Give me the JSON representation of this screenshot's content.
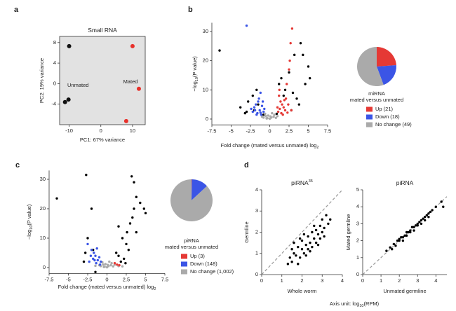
{
  "chart_data": [
    {
      "type": "scatter",
      "panel": "a",
      "title": "Small RNA",
      "xlabel": "PC1: 67% variance",
      "ylabel": "PC2: 19% variance",
      "xlim": [
        -13,
        14
      ],
      "ylim": [
        -8,
        9.2
      ],
      "xticks": [
        -10,
        0,
        10
      ],
      "yticks": [
        -4,
        0,
        4,
        8
      ],
      "background": "#e2e2e2",
      "series": [
        {
          "name": "Unmated",
          "color": "#111111",
          "x": [
            -10,
            -11.3,
            -10.2
          ],
          "values": [
            7.3,
            -3.6,
            -3.1
          ]
        },
        {
          "name": "Mated",
          "color": "#e8302a",
          "x": [
            10,
            12,
            8
          ],
          "values": [
            7.3,
            -1,
            -7.3
          ]
        }
      ]
    },
    {
      "type": "scatter",
      "panel": "b",
      "xlabel": "Fold change (mated versus unmated) log",
      "xlabel_sub": "2",
      "ylabel": "−log",
      "ylabel_sub": "10",
      "ylabel_end": "(P value)",
      "xlim": [
        -7.5,
        7.5
      ],
      "ylim": [
        -2,
        33
      ],
      "xticks": [
        -7.5,
        -5,
        -2.5,
        0,
        2.5,
        5,
        7.5
      ],
      "yticks": [
        0,
        10,
        20,
        30
      ],
      "series": [
        {
          "name": "Up (21)",
          "color": "#e53935",
          "x": [
            2.9,
            2.7,
            2.6,
            2.5,
            2.2,
            1.2,
            1.4,
            1.6,
            1.8,
            2,
            1.1,
            1.3,
            1.5,
            1.9,
            2.1,
            2.4,
            1,
            1.7,
            2.8,
            1.25,
            2.3
          ],
          "values": [
            31,
            26,
            20,
            17,
            12,
            8,
            6,
            5,
            4,
            3,
            2.5,
            3.5,
            2,
            6.5,
            7,
            5,
            4,
            1.5,
            3,
            10,
            2.2
          ]
        },
        {
          "name": "Down (18)",
          "color": "#3b55e6",
          "x": [
            -3,
            -1.2,
            -1.5,
            -1.8,
            -2,
            -1.3,
            -1,
            -0.8,
            -1.6,
            -2.2,
            -1.1,
            -0.7,
            -1.9,
            -1.4,
            -0.9,
            -1.7,
            -1.2,
            -2.4
          ],
          "values": [
            32,
            9,
            6,
            5,
            4,
            3,
            4.5,
            2.5,
            2,
            2.5,
            1.5,
            3.5,
            3,
            7,
            6,
            1.5,
            2.2,
            3.5
          ]
        },
        {
          "name": "No change (49)",
          "color": "#aaaaaa",
          "x": [
            -0.8,
            -0.5,
            -0.3,
            0,
            0.2,
            0.5,
            0.8,
            -0.6,
            0.6,
            -0.2,
            0.3,
            1,
            -1,
            0.1,
            -0.4
          ],
          "values": [
            0.5,
            1,
            0.3,
            0.1,
            0.5,
            0.8,
            0.4,
            1.8,
            1.5,
            1.2,
            2,
            1,
            0.8,
            0.9,
            0.2
          ]
        },
        {
          "color": "#000000",
          "x": [
            -6.5,
            -3.8,
            -3,
            -2.8,
            -2.2,
            -2,
            -1.7,
            -1.5,
            1.2,
            1.5,
            1.8,
            2,
            2.5,
            3,
            3.5,
            3.2,
            4,
            4.3,
            5,
            5.2,
            4.6,
            3.8,
            2.8,
            -3.2,
            -0.8,
            0.9
          ],
          "values": [
            23.5,
            4,
            2.5,
            6,
            8,
            3,
            10,
            5,
            12,
            14,
            8,
            10,
            16,
            9,
            7,
            22,
            26,
            22,
            18,
            14,
            12,
            5,
            3,
            2,
            1.5,
            1.8
          ]
        }
      ]
    },
    {
      "type": "pie",
      "title": "miRNA",
      "subtitle": "mated versus unmated",
      "values": [
        21,
        18,
        49
      ],
      "colors": [
        "#e53935",
        "#3b55e6",
        "#aaaaaa"
      ]
    },
    {
      "type": "scatter",
      "panel": "c",
      "xlabel": "Fold change (mated versus unmated) log",
      "xlabel_sub": "2",
      "ylabel": "−log",
      "ylabel_sub": "10",
      "ylabel_end": "(P value)",
      "xlim": [
        -7.5,
        7.5
      ],
      "ylim": [
        -2,
        33
      ],
      "xticks": [
        -7.5,
        -5,
        -2.5,
        0,
        2.5,
        5,
        7.5
      ],
      "yticks": [
        0,
        10,
        20,
        30
      ],
      "series": [
        {
          "name": "Up (3)",
          "color": "#e53935",
          "x": [
            1,
            1.3,
            1.6
          ],
          "values": [
            1.5,
            1,
            0.8
          ]
        },
        {
          "name": "Down (148)",
          "color": "#3b55e6",
          "x": [
            -2,
            -1.5,
            -1.8,
            -1.2,
            -2.3,
            -1,
            -0.8,
            -1.4,
            -1.7,
            -2.1,
            -0.9,
            -1.3,
            -2.5,
            -1.6
          ],
          "values": [
            6,
            4,
            3,
            2.5,
            2,
            3.5,
            2,
            1.5,
            5,
            4,
            1,
            6.5,
            8,
            2.5
          ]
        },
        {
          "name": "No change (1,002)",
          "color": "#aaaaaa",
          "x": [
            -0.8,
            -0.5,
            -0.3,
            0,
            0.2,
            0.5,
            0.8,
            -0.6,
            0.6,
            -0.2,
            0.3,
            1,
            -1,
            0.1,
            -0.4,
            1.5,
            -1.5,
            2
          ],
          "values": [
            0.5,
            1,
            0.3,
            0.1,
            0.5,
            0.8,
            0.4,
            1.8,
            1.5,
            1.2,
            2,
            1,
            0.8,
            0.9,
            0.2,
            0.5,
            0.6,
            0.4
          ]
        },
        {
          "color": "#000000",
          "x": [
            -6.5,
            -2.7,
            -2,
            -2.5,
            -2.8,
            -3,
            -1.8,
            1.5,
            2,
            2.5,
            3,
            3.3,
            3.5,
            3.8,
            3.5,
            3.2,
            4.3,
            4.8,
            5,
            2.8,
            2.2,
            1.5,
            -1.5,
            3.8,
            2.6,
            1.8,
            2.4,
            1.2
          ],
          "values": [
            23.5,
            31.5,
            20,
            10,
            5,
            2,
            6,
            14,
            10,
            8,
            15,
            17,
            20,
            24,
            29,
            31,
            22,
            20,
            18.5,
            6,
            3,
            4,
            -1.5,
            12,
            12,
            2,
            1.5,
            5
          ]
        }
      ]
    },
    {
      "type": "pie",
      "title": "piRNA",
      "subtitle": "mated versus unmated",
      "values": [
        3,
        148,
        1002
      ],
      "colors": [
        "#e53935",
        "#3b55e6",
        "#aaaaaa"
      ]
    },
    {
      "type": "scatter",
      "panel": "d",
      "title": "piRNA",
      "title_sup": "35",
      "xlabel": "Whole worm",
      "ylabel": "Germline",
      "ylabel_color": "#a35bd6",
      "xlim": [
        0,
        4
      ],
      "ylim": [
        0,
        4
      ],
      "xticks": [
        0,
        1,
        2,
        3,
        4
      ],
      "yticks": [
        0,
        1,
        2,
        3,
        4
      ],
      "diagonal": true,
      "series": [
        {
          "color": "#000000",
          "x": [
            1.3,
            1.4,
            1.5,
            1.6,
            1.7,
            1.8,
            1.9,
            2.0,
            2.0,
            2.1,
            2.2,
            2.3,
            2.3,
            2.4,
            2.5,
            2.5,
            2.6,
            2.7,
            2.7,
            2.8,
            2.9,
            3.0,
            3.0,
            3.1,
            3.2,
            3.3,
            1.6,
            1.9,
            2.2,
            2.6,
            1.5,
            2.8,
            3.4,
            2.4,
            1.8,
            2.1,
            3.1,
            2.9
          ],
          "values": [
            0.5,
            0.8,
            0.6,
            1.0,
            0.9,
            1.3,
            0.8,
            1.2,
            1.6,
            1.0,
            1.4,
            1.2,
            1.8,
            1.5,
            1.3,
            2.0,
            1.7,
            1.5,
            2.1,
            1.9,
            2.3,
            2.0,
            2.6,
            2.2,
            2.8,
            2.4,
            1.5,
            1.7,
            0.9,
            2.3,
            1.2,
            1.4,
            2.6,
            1.1,
            0.5,
            1.9,
            1.8,
            1.7
          ]
        }
      ]
    },
    {
      "type": "scatter",
      "title": "piRNA",
      "xlabel": "Unmated germline",
      "xlabel_color": "#9a6b2e",
      "ylabel": "Mated germline",
      "ylabel_color": "#e53935",
      "xlim": [
        0,
        4.6
      ],
      "ylim": [
        0,
        5
      ],
      "xticks": [
        0,
        1,
        2,
        3,
        4
      ],
      "yticks": [
        0,
        1,
        2,
        3,
        4,
        5
      ],
      "diagonal": true,
      "series": [
        {
          "color": "#000000",
          "x": [
            1.5,
            1.7,
            1.9,
            2.0,
            2.1,
            2.2,
            2.3,
            2.4,
            2.5,
            2.6,
            2.7,
            2.8,
            2.9,
            3.0,
            3.1,
            3.2,
            3.3,
            3.4,
            3.5,
            3.6,
            3.7,
            3.8,
            4.0,
            4.3,
            4.4,
            1.6,
            1.8,
            2.0,
            2.2,
            2.4,
            2.6,
            2.8,
            3.0,
            3.2,
            3.4,
            3.6,
            1.3
          ],
          "values": [
            1.6,
            1.8,
            2.0,
            2.0,
            2.2,
            2.2,
            2.3,
            2.5,
            2.5,
            2.6,
            2.8,
            2.8,
            2.9,
            3.0,
            3.1,
            3.2,
            3.3,
            3.4,
            3.5,
            3.6,
            3.7,
            3.8,
            4.0,
            4.3,
            4.0,
            1.5,
            1.7,
            2.1,
            2.0,
            2.3,
            2.5,
            2.6,
            2.9,
            3.0,
            3.2,
            3.4,
            1.4
          ]
        }
      ]
    }
  ],
  "footer": {
    "text": "Axis unit: log",
    "sub": "10",
    "end": "(RPM)"
  }
}
